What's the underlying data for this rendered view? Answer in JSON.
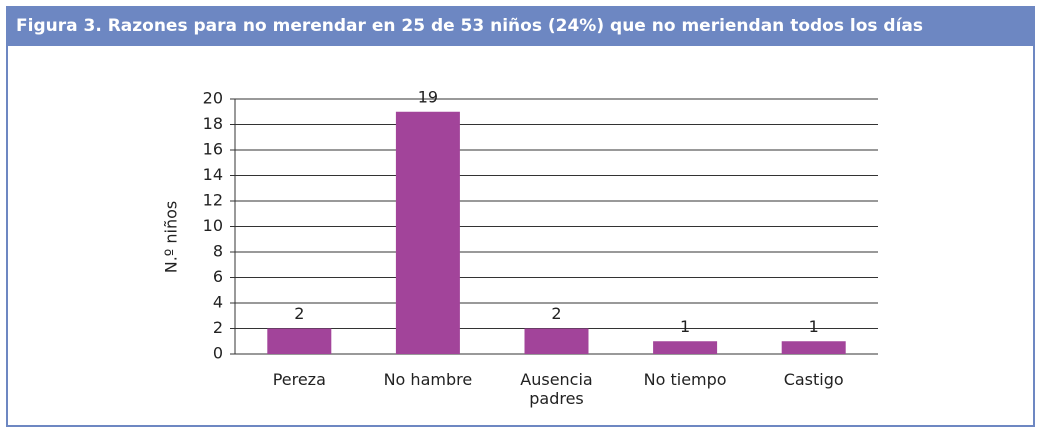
{
  "chart_data": {
    "type": "bar",
    "title": "Figura 3.  Razones para no merendar en 25 de 53 niños (24%) que no meriendan todos los días",
    "y_label": "N.º niños",
    "categories": [
      "Pereza",
      "No hambre",
      "Ausencia padres",
      "No tiempo",
      "Castigo"
    ],
    "values": [
      2,
      19,
      2,
      1,
      1
    ],
    "color": "#a2449a",
    "ylim": [
      0,
      20
    ],
    "yticks": [
      0,
      2,
      4,
      6,
      8,
      10,
      12,
      14,
      16,
      18,
      20
    ],
    "grid": true
  }
}
